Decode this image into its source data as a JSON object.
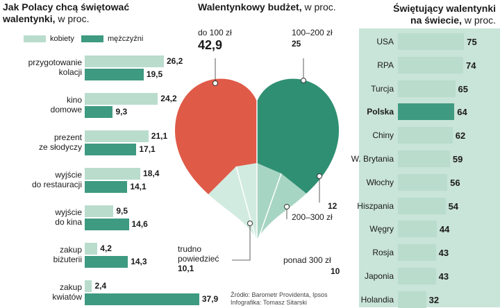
{
  "left": {
    "title_line1": "Jak Polacy chcą świętować",
    "title_line2": "walentynki,",
    "unit": " w proc.",
    "legend": {
      "female": "kobiety",
      "male": "mężczyźni"
    },
    "colors": {
      "female": "#b9dccd",
      "male": "#3e9a80"
    }
  },
  "center": {
    "title": "Walentynkowy budżet,",
    "unit": " w proc.",
    "slices": [
      {
        "label": "do 100 zł",
        "value": "42,9",
        "color": "#e05a48"
      },
      {
        "label": "100–200 zł",
        "value": "25",
        "color": "#2f8f72"
      },
      {
        "label": "200–300 zł",
        "value": "12",
        "color": "#7cc0a8"
      },
      {
        "label": "ponad 300 zł",
        "value": "10",
        "color": "#a7d5c3"
      },
      {
        "label_line1": "trudno",
        "label_line2": "powiedzieć",
        "value": "10,1",
        "color": "#d2ebe0"
      }
    ],
    "source_line1": "Źródło: Barometr Providenta, Ipsos",
    "source_line2": "Infografika: Tomasz Sitarski"
  },
  "right": {
    "title_line1": "Świętujący walentynki",
    "title_line2": "na świecie,",
    "unit": " w proc."
  },
  "chart_data": [
    {
      "type": "bar",
      "title": "Jak Polacy chcą świętować walentynki, w proc.",
      "categories": [
        [
          "przygotowanie",
          "kolacji"
        ],
        [
          "kino",
          "domowe"
        ],
        [
          "prezent",
          "ze słodyczy"
        ],
        [
          "wyjście",
          "do restauracji"
        ],
        [
          "wyjście",
          "do kina"
        ],
        [
          "zakup",
          "biżuterii"
        ],
        [
          "zakup",
          "kwiatów"
        ]
      ],
      "series": [
        {
          "name": "kobiety",
          "values": [
            26.2,
            24.2,
            21.1,
            18.4,
            9.5,
            4.2,
            2.4
          ],
          "labels": [
            "26,2",
            "24,2",
            "21,1",
            "18,4",
            "9,5",
            "4,2",
            "2,4"
          ]
        },
        {
          "name": "mężczyźni",
          "values": [
            19.5,
            9.3,
            17.1,
            14.1,
            14.6,
            14.3,
            37.9
          ],
          "labels": [
            "19,5",
            "9,3",
            "17,1",
            "14,1",
            "14,6",
            "14,3",
            "37,9"
          ]
        }
      ],
      "xlim": [
        0,
        40
      ]
    },
    {
      "type": "pie",
      "title": "Walentynkowy budżet, w proc.",
      "categories": [
        "do 100 zł",
        "100–200 zł",
        "200–300 zł",
        "ponad 300 zł",
        "trudno powiedzieć"
      ],
      "values": [
        42.9,
        25,
        12,
        10,
        10.1
      ]
    },
    {
      "type": "bar",
      "title": "Świętujący walentynki na świecie, w proc.",
      "categories": [
        "USA",
        "RPA",
        "Turcja",
        "Polska",
        "Chiny",
        "W. Brytania",
        "Włochy",
        "Hiszpania",
        "Węgry",
        "Rosja",
        "Japonia",
        "Holandia"
      ],
      "values": [
        75,
        74,
        65,
        64,
        62,
        59,
        56,
        54,
        44,
        43,
        43,
        32
      ],
      "highlight": "Polska",
      "xlim": [
        0,
        80
      ]
    }
  ]
}
